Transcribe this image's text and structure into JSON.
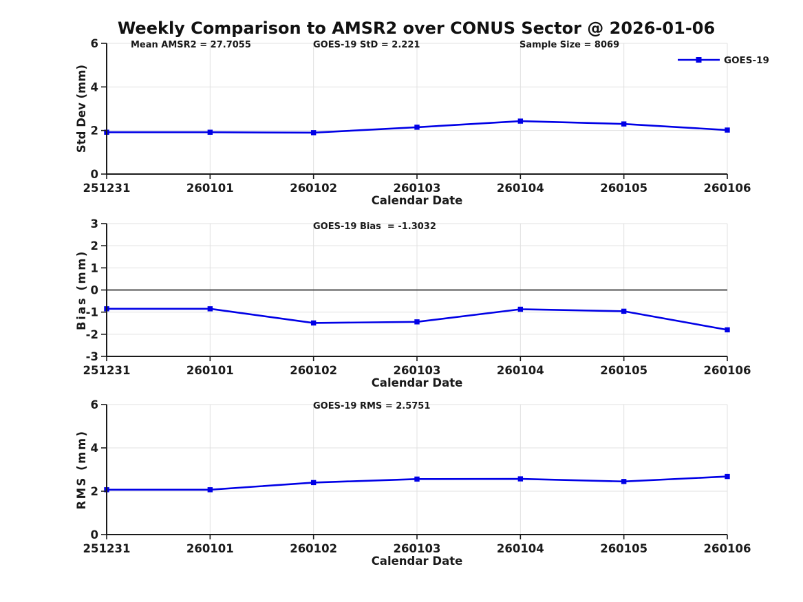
{
  "title": "Weekly Comparison to AMSR2 over CONUS Sector @ 2026-01-06",
  "colors": {
    "line": "#0000E6",
    "marker": "#0000E6",
    "grid": "#E0E0E0",
    "axis": "#1A1A1A",
    "zero_line": "#4D4D4D",
    "text": "#1A1A1A",
    "background": "#FFFFFF"
  },
  "legend": {
    "label": "GOES-19",
    "position": "top-right-outside"
  },
  "chart_data": [
    {
      "type": "line",
      "name": "std-dev",
      "title": "",
      "xlabel": "Calendar Date",
      "ylabel": "Std Dev (mm)",
      "ylim": [
        0,
        6
      ],
      "yticks": [
        0,
        2,
        4,
        6
      ],
      "grid": true,
      "zero_line": false,
      "categories": [
        "251231",
        "260101",
        "260102",
        "260103",
        "260104",
        "260105",
        "260106"
      ],
      "series": [
        {
          "name": "GOES-19",
          "values": [
            1.92,
            1.92,
            1.9,
            2.15,
            2.43,
            2.3,
            2.02
          ]
        }
      ],
      "annotations": [
        "Mean AMSR2 = 27.7055",
        "GOES-19 StD = 2.221",
        "Sample Size = 8069"
      ],
      "legend": "GOES-19"
    },
    {
      "type": "line",
      "name": "bias",
      "title": "",
      "xlabel": "Calendar Date",
      "ylabel": "Bias (mm)",
      "ylim": [
        -3,
        3
      ],
      "yticks": [
        -3,
        -2,
        -1,
        0,
        1,
        2,
        3
      ],
      "grid": true,
      "zero_line": true,
      "categories": [
        "251231",
        "260101",
        "260102",
        "260103",
        "260104",
        "260105",
        "260106"
      ],
      "series": [
        {
          "name": "GOES-19",
          "values": [
            -0.85,
            -0.85,
            -1.49,
            -1.44,
            -0.87,
            -0.96,
            -1.8
          ]
        }
      ],
      "annotations": [
        "GOES-19 Bias  = -1.3032"
      ],
      "legend": null
    },
    {
      "type": "line",
      "name": "rms",
      "title": "",
      "xlabel": "Calendar Date",
      "ylabel": "RMS (mm)",
      "ylim": [
        0,
        6
      ],
      "yticks": [
        0,
        2,
        4,
        6
      ],
      "grid": true,
      "zero_line": false,
      "categories": [
        "251231",
        "260101",
        "260102",
        "260103",
        "260104",
        "260105",
        "260106"
      ],
      "series": [
        {
          "name": "GOES-19",
          "values": [
            2.07,
            2.07,
            2.4,
            2.56,
            2.57,
            2.45,
            2.68
          ]
        }
      ],
      "annotations": [
        "GOES-19 RMS = 2.5751"
      ],
      "legend": null
    }
  ]
}
